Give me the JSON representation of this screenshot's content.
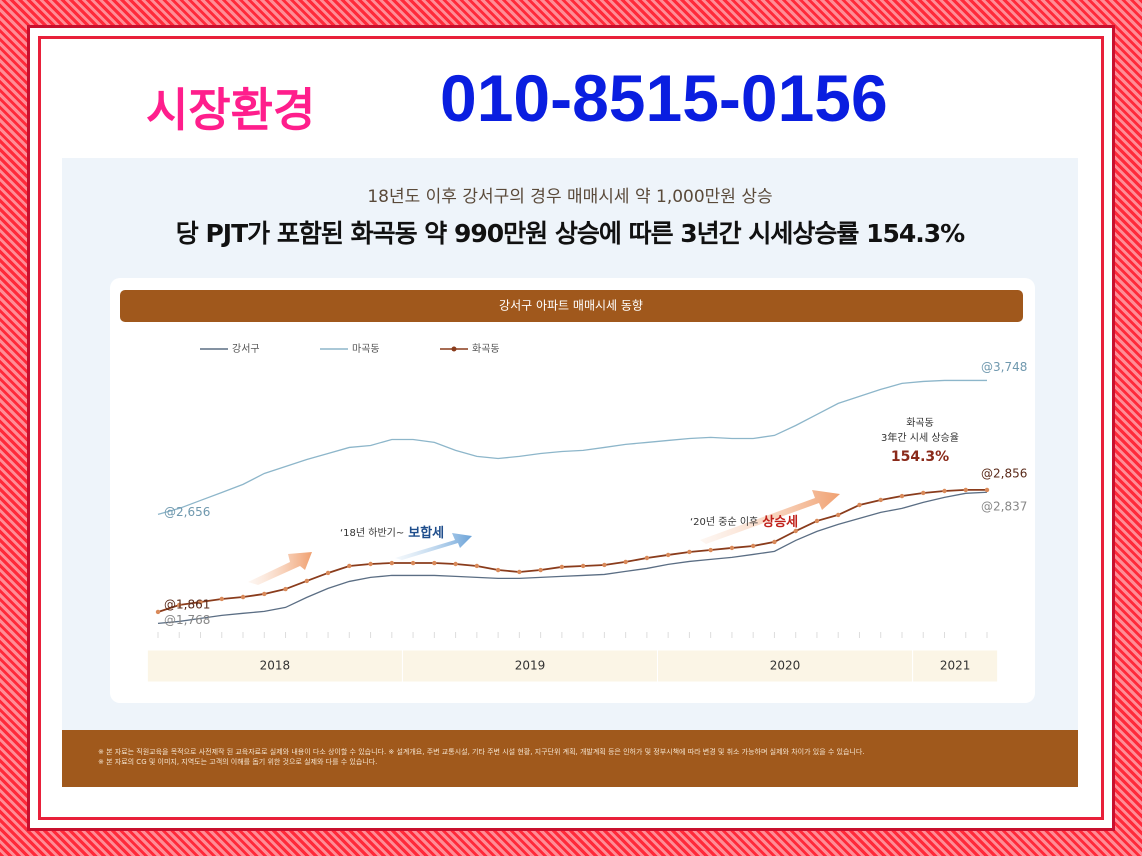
{
  "header": {
    "label": "시장환경",
    "phone": "010-8515-0156"
  },
  "headline": {
    "subtitle": "18년도 이후 강서구의 경우 매매시세 약 1,000만원 상승",
    "title": "당 PJT가 포함된 화곡동 약 990만원 상승에 따른 3년간 시세상승률 154.3%"
  },
  "chart_data": {
    "type": "line",
    "title": "강서구 아파트 매매시세 동향",
    "categories": [
      null,
      null,
      null,
      null,
      null,
      null,
      null,
      null,
      null,
      null,
      null,
      null,
      null,
      null,
      null,
      null,
      null,
      null,
      null,
      null,
      null,
      null,
      null,
      null,
      null,
      null,
      null,
      null,
      null,
      null,
      null,
      null,
      null,
      null,
      null,
      null,
      null,
      null,
      null,
      null
    ],
    "year_groups": [
      {
        "label": "2018",
        "span": 12
      },
      {
        "label": "2019",
        "span": 12
      },
      {
        "label": "2020",
        "span": 12
      },
      {
        "label": "2021",
        "span": 4
      }
    ],
    "ylim": [
      1600,
      4200
    ],
    "series": [
      {
        "name": "강서구",
        "color": "#5b6e84",
        "markers": false,
        "values": [
          1768,
          1784,
          1809,
          1833,
          1850,
          1866,
          1898,
          1980,
          2053,
          2110,
          2143,
          2159,
          2159,
          2159,
          2151,
          2143,
          2135,
          2135,
          2143,
          2151,
          2159,
          2167,
          2192,
          2216,
          2249,
          2273,
          2290,
          2306,
          2330,
          2355,
          2444,
          2518,
          2575,
          2624,
          2673,
          2705,
          2754,
          2795,
          2828,
          2837
        ],
        "value_labels": [
          "@1,768",
          null,
          null,
          null,
          null,
          null,
          null,
          null,
          null,
          null,
          null,
          null,
          null,
          null,
          null,
          null,
          null,
          null,
          null,
          null,
          null,
          null,
          null,
          null,
          null,
          null,
          null,
          null,
          null,
          null,
          null,
          null,
          null,
          null,
          null,
          null,
          null,
          null,
          null,
          "@2,837"
        ]
      },
      {
        "name": "마곡동",
        "color": "#8db6ca",
        "markers": false,
        "values": [
          2656,
          2705,
          2770,
          2835,
          2901,
          2990,
          3047,
          3104,
          3153,
          3202,
          3218,
          3267,
          3267,
          3243,
          3178,
          3129,
          3112,
          3129,
          3153,
          3169,
          3178,
          3202,
          3227,
          3243,
          3259,
          3275,
          3284,
          3275,
          3275,
          3300,
          3381,
          3471,
          3561,
          3618,
          3675,
          3724,
          3740,
          3748,
          3748,
          3748
        ],
        "value_labels": [
          "@2,656",
          null,
          null,
          null,
          null,
          null,
          null,
          null,
          null,
          null,
          null,
          null,
          null,
          null,
          null,
          null,
          null,
          null,
          null,
          null,
          null,
          null,
          null,
          null,
          null,
          null,
          null,
          null,
          null,
          null,
          null,
          null,
          null,
          null,
          null,
          null,
          null,
          null,
          null,
          "@3,748"
        ]
      },
      {
        "name": "화곡동",
        "color": "#8a3c1c",
        "markers": true,
        "values": [
          1861,
          1918,
          1942,
          1967,
          1983,
          2008,
          2048,
          2114,
          2179,
          2236,
          2252,
          2260,
          2260,
          2260,
          2252,
          2236,
          2203,
          2187,
          2203,
          2228,
          2236,
          2244,
          2269,
          2301,
          2326,
          2350,
          2366,
          2383,
          2399,
          2432,
          2521,
          2603,
          2652,
          2733,
          2774,
          2806,
          2831,
          2847,
          2856,
          2856
        ],
        "value_labels": [
          "@1,861",
          null,
          null,
          null,
          null,
          null,
          null,
          null,
          null,
          null,
          null,
          null,
          null,
          null,
          null,
          null,
          null,
          null,
          null,
          null,
          null,
          null,
          null,
          null,
          null,
          null,
          null,
          null,
          null,
          null,
          null,
          null,
          null,
          null,
          null,
          null,
          null,
          null,
          null,
          "@2,856"
        ]
      }
    ],
    "annotations": [
      {
        "text": "‘18년 하반기~",
        "emphasis": "보합세"
      },
      {
        "text": "‘20년 중순 이후",
        "emphasis": "상승세"
      },
      {
        "lines": [
          "화곡동",
          "3年간 시세 상승율"
        ],
        "emphasis": "154.3%"
      }
    ]
  },
  "footnotes": [
    "※ 본 자료는 직원교육을 목적으로 사전제작 된 교육자료로 실제와 내용이 다소 상이할 수 있습니다. ※ 설계개요, 주변 교통시설, 기타 주변 시설 현황, 지구단위 계획, 개발계획 등은 인허가 및 정부시책에 따라 변경 및 취소 가능하며 실제와 차이가 있을 수 있습니다.",
    "※ 본 자료의 CG 및 이미지, 지역도는 고객의 이해를 돕기 위한 것으로 실제와 다를 수 있습니다."
  ]
}
